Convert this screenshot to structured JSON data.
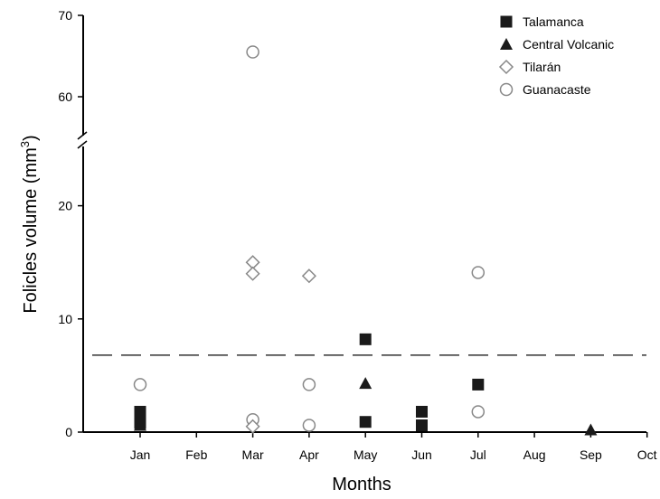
{
  "chart_data": {
    "type": "scatter",
    "title": "",
    "xlabel": "Months",
    "ylabel_main": "Folicles volume (mm",
    "ylabel_sup": "3",
    "ylabel_close": ")",
    "x_categories": [
      "Jan",
      "Feb",
      "Mar",
      "Apr",
      "May",
      "Jun",
      "Jul",
      "Aug",
      "Sep",
      "Oct"
    ],
    "y_ticks": [
      "0",
      "10",
      "20",
      "60",
      "70"
    ],
    "y_break": {
      "lower_range": [
        0,
        25
      ],
      "upper_range": [
        56,
        70
      ]
    },
    "reference_line": {
      "y": 6.8,
      "style": "dashed"
    },
    "legend_position": "top-right",
    "series": [
      {
        "name": "Talamanca",
        "marker": "filled-square",
        "color": "#1a1a1a",
        "points": [
          {
            "x": "Jan",
            "y": 1.8
          },
          {
            "x": "Jan",
            "y": 0.8
          },
          {
            "x": "May",
            "y": 8.2
          },
          {
            "x": "May",
            "y": 0.9
          },
          {
            "x": "Jun",
            "y": 1.8
          },
          {
            "x": "Jun",
            "y": 0.6
          },
          {
            "x": "Jul",
            "y": 4.2
          }
        ]
      },
      {
        "name": "Central Volcanic",
        "marker": "filled-triangle",
        "color": "#1a1a1a",
        "points": [
          {
            "x": "Jan",
            "y": 0.6
          },
          {
            "x": "May",
            "y": 4.3
          },
          {
            "x": "Sep",
            "y": 0.2
          }
        ]
      },
      {
        "name": "Tilarán",
        "marker": "open-diamond",
        "color": "#888888",
        "points": [
          {
            "x": "Mar",
            "y": 15.0
          },
          {
            "x": "Mar",
            "y": 14.0
          },
          {
            "x": "Mar",
            "y": 0.5
          },
          {
            "x": "Apr",
            "y": 13.8
          }
        ]
      },
      {
        "name": "Guanacaste",
        "marker": "open-circle",
        "color": "#888888",
        "points": [
          {
            "x": "Jan",
            "y": 4.2
          },
          {
            "x": "Mar",
            "y": 65.5
          },
          {
            "x": "Mar",
            "y": 1.1
          },
          {
            "x": "Apr",
            "y": 4.2
          },
          {
            "x": "Apr",
            "y": 0.6
          },
          {
            "x": "Jul",
            "y": 14.1
          },
          {
            "x": "Jul",
            "y": 1.8
          }
        ]
      }
    ]
  }
}
